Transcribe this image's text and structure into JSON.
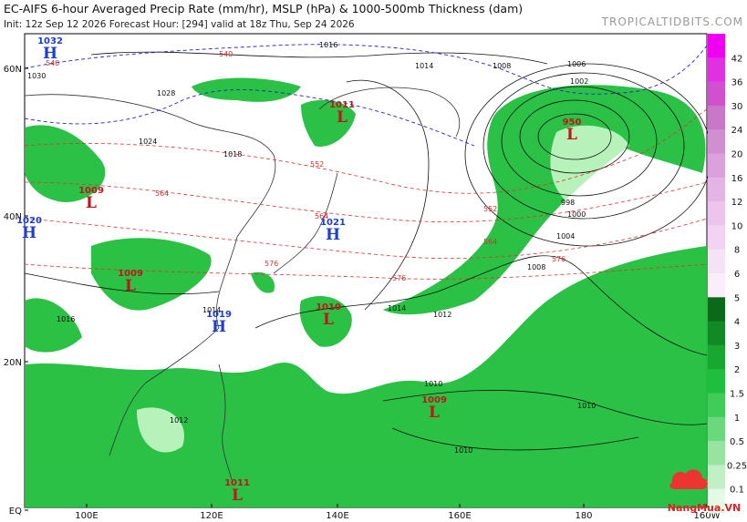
{
  "header": {
    "title": "EC-AIFS 6-hour Averaged Precip Rate (mm/hr), MSLP (hPa) & 1000-500mb Thickness (dam)",
    "subtitle": "Init: 12z Sep 12 2026   Forecast Hour: [294]   valid at 18z Thu, Sep 24 2026",
    "site": "TROPICALTIDBITS.COM"
  },
  "map": {
    "lat_labels": [
      "60N",
      "40N",
      "20N",
      "EQ"
    ],
    "lon_labels": [
      "100E",
      "120E",
      "140E",
      "160E",
      "180",
      "160W"
    ],
    "centers": [
      {
        "pressure": "1032",
        "symbol": "H"
      },
      {
        "pressure": "1009",
        "symbol": "L"
      },
      {
        "pressure": "1020",
        "symbol": "H"
      },
      {
        "pressure": "1009",
        "symbol": "L"
      },
      {
        "pressure": "1011",
        "symbol": "L"
      },
      {
        "pressure": "1021",
        "symbol": "H"
      },
      {
        "pressure": "1019",
        "symbol": "H"
      },
      {
        "pressure": "1010",
        "symbol": "L"
      },
      {
        "pressure": "950",
        "symbol": "L"
      },
      {
        "pressure": "1009",
        "symbol": "L"
      },
      {
        "pressure": "1011",
        "symbol": "L"
      }
    ],
    "isobar_labels": [
      "1016",
      "1014",
      "1008",
      "1006",
      "1002",
      "998",
      "1000",
      "1004",
      "1008",
      "1012",
      "1014",
      "1010",
      "1010",
      "1010",
      "1012",
      "1014",
      "1016",
      "1018",
      "1024",
      "1028",
      "1030"
    ],
    "thickness_labels": [
      "540",
      "540",
      "552",
      "564",
      "564",
      "576",
      "576",
      "552",
      "564",
      "576"
    ]
  },
  "colorbar": {
    "labels": [
      "42",
      "36",
      "30",
      "24",
      "20",
      "16",
      "12",
      "10",
      "8",
      "6",
      "5",
      "4",
      "3",
      "2",
      "1.5",
      "1",
      "0.5",
      "0.25",
      "0.1"
    ]
  },
  "watermark": "NangMua.VN"
}
